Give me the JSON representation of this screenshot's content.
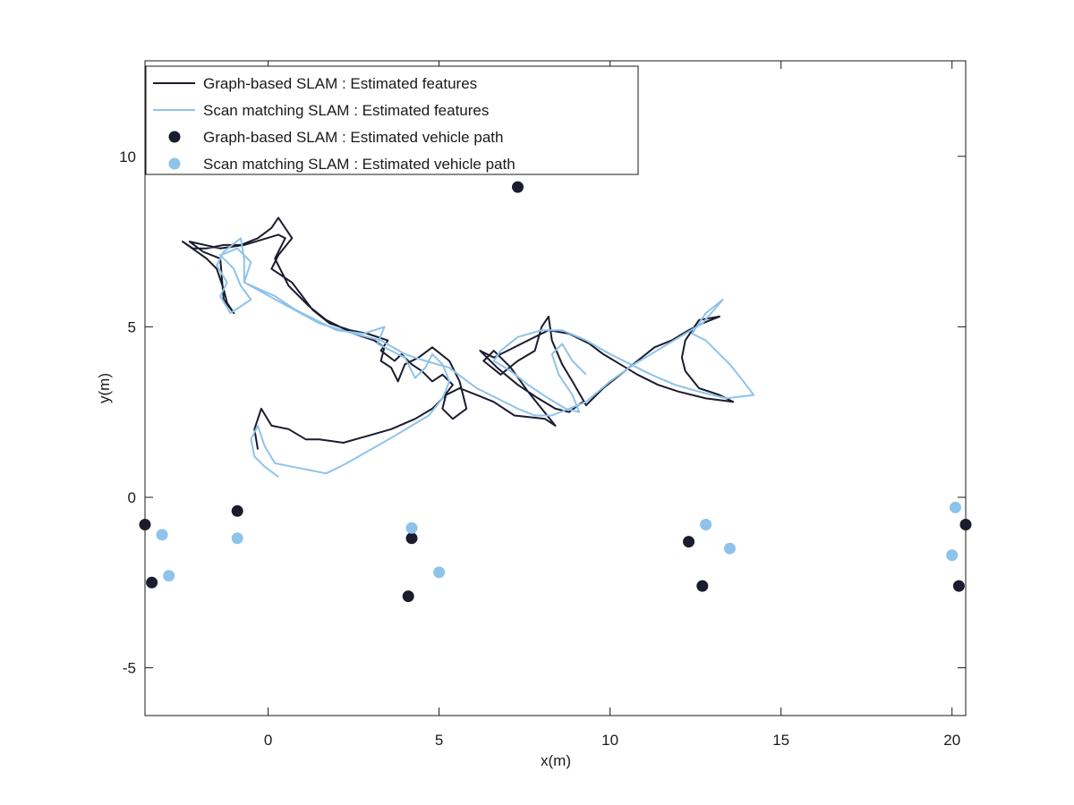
{
  "chart_data": {
    "type": "line",
    "title": "",
    "xlabel": "x(m)",
    "ylabel": "y(m)",
    "xlim": [
      -3.6,
      20.4
    ],
    "ylim": [
      -6.4,
      12.8
    ],
    "xticks": [
      0,
      5,
      10,
      15,
      20
    ],
    "yticks": [
      -5,
      0,
      5,
      10
    ],
    "xtick_labels": [
      "0",
      "5",
      "10",
      "15",
      "20"
    ],
    "ytick_labels": [
      "-5",
      "0",
      "5",
      "10"
    ],
    "grid": false,
    "legend_position": "top-left",
    "colors": {
      "graph": "#1b1c2e",
      "scan": "#8ec3ea"
    },
    "series": [
      {
        "name": "Graph-based SLAM : Estimated features",
        "kind": "line",
        "color": "#1b1c2e",
        "points": [
          [
            -0.3,
            1.4
          ],
          [
            -0.4,
            2.0
          ],
          [
            -0.2,
            2.6
          ],
          [
            0.1,
            2.1
          ],
          [
            0.6,
            2.0
          ],
          [
            1.1,
            1.7
          ],
          [
            1.5,
            1.7
          ],
          [
            2.2,
            1.6
          ],
          [
            2.9,
            1.8
          ],
          [
            3.6,
            2.0
          ],
          [
            4.3,
            2.3
          ],
          [
            4.8,
            2.6
          ],
          [
            5.1,
            2.9
          ],
          [
            5.4,
            3.3
          ],
          [
            5.1,
            3.6
          ],
          [
            4.8,
            3.4
          ],
          [
            4.5,
            3.7
          ],
          [
            4.2,
            3.9
          ],
          [
            3.9,
            4.2
          ],
          [
            3.7,
            4.0
          ],
          [
            3.3,
            4.3
          ],
          [
            3.5,
            4.6
          ],
          [
            2.9,
            4.8
          ],
          [
            2.4,
            4.9
          ],
          [
            1.8,
            5.1
          ],
          [
            1.3,
            5.5
          ],
          [
            0.7,
            6.3
          ],
          [
            0.1,
            6.7
          ],
          [
            0.3,
            7.1
          ],
          [
            0.7,
            7.6
          ],
          [
            0.3,
            8.2
          ],
          [
            0.1,
            7.9
          ],
          [
            -0.3,
            7.6
          ],
          [
            -0.8,
            7.4
          ],
          [
            -1.3,
            7.4
          ],
          [
            -1.8,
            7.3
          ],
          [
            -2.2,
            7.3
          ],
          [
            -2.5,
            7.5
          ],
          [
            -1.8,
            7.0
          ],
          [
            -1.5,
            6.7
          ],
          [
            -1.3,
            6.1
          ],
          [
            -1.2,
            5.7
          ],
          [
            -1.0,
            5.4
          ],
          [
            -1.3,
            5.8
          ],
          [
            -1.4,
            7.0
          ],
          [
            -1.9,
            7.2
          ],
          [
            -2.3,
            7.5
          ],
          [
            -1.4,
            7.3
          ],
          [
            -0.7,
            7.4
          ],
          [
            0.3,
            7.7
          ],
          [
            0.5,
            7.6
          ],
          [
            0.2,
            7.0
          ],
          [
            0.6,
            6.2
          ],
          [
            1.2,
            5.6
          ],
          [
            1.7,
            5.2
          ],
          [
            2.5,
            4.8
          ],
          [
            3.1,
            4.6
          ],
          [
            3.4,
            4.4
          ],
          [
            3.3,
            4.0
          ],
          [
            3.6,
            3.8
          ],
          [
            3.8,
            3.4
          ],
          [
            4.0,
            3.9
          ],
          [
            4.4,
            4.1
          ],
          [
            4.8,
            4.4
          ],
          [
            5.3,
            4.0
          ],
          [
            5.6,
            3.4
          ],
          [
            5.8,
            2.6
          ],
          [
            5.4,
            2.3
          ],
          [
            5.1,
            2.6
          ],
          [
            5.2,
            3.0
          ],
          [
            5.6,
            3.2
          ],
          [
            6.1,
            3.0
          ],
          [
            6.6,
            2.8
          ],
          [
            7.2,
            2.4
          ],
          [
            8.1,
            2.3
          ],
          [
            8.4,
            2.1
          ],
          [
            8.0,
            2.6
          ],
          [
            7.6,
            3.1
          ],
          [
            7.1,
            3.8
          ],
          [
            6.6,
            4.3
          ],
          [
            6.3,
            4.0
          ],
          [
            6.8,
            3.6
          ],
          [
            7.3,
            4.0
          ],
          [
            7.8,
            4.3
          ],
          [
            8.0,
            5.0
          ],
          [
            8.2,
            5.3
          ],
          [
            8.3,
            4.6
          ],
          [
            8.6,
            3.9
          ],
          [
            8.9,
            3.4
          ],
          [
            9.3,
            2.7
          ],
          [
            9.8,
            3.2
          ],
          [
            10.3,
            3.6
          ],
          [
            10.8,
            4.0
          ],
          [
            11.3,
            4.4
          ],
          [
            11.8,
            4.6
          ],
          [
            12.3,
            4.9
          ],
          [
            12.7,
            5.1
          ],
          [
            13.2,
            5.3
          ],
          [
            12.6,
            5.2
          ],
          [
            12.2,
            4.6
          ],
          [
            12.1,
            4.1
          ],
          [
            12.2,
            3.7
          ],
          [
            12.6,
            3.2
          ],
          [
            13.2,
            3.0
          ],
          [
            13.6,
            2.8
          ],
          [
            12.8,
            2.9
          ],
          [
            12.0,
            3.1
          ],
          [
            11.4,
            3.3
          ],
          [
            10.8,
            3.6
          ],
          [
            10.3,
            3.9
          ],
          [
            9.8,
            4.2
          ],
          [
            9.4,
            4.5
          ],
          [
            8.8,
            4.8
          ],
          [
            8.2,
            4.9
          ],
          [
            7.6,
            4.6
          ],
          [
            7.0,
            4.3
          ],
          [
            6.6,
            4.1
          ],
          [
            6.2,
            4.3
          ],
          [
            6.7,
            3.8
          ],
          [
            7.3,
            3.3
          ],
          [
            7.9,
            2.9
          ],
          [
            8.4,
            2.6
          ],
          [
            8.8,
            2.5
          ],
          [
            9.2,
            2.8
          ]
        ]
      },
      {
        "name": "Scan matching SLAM : Estimated features",
        "kind": "line",
        "color": "#8ec3ea",
        "points": [
          [
            0.3,
            0.6
          ],
          [
            -0.1,
            0.9
          ],
          [
            -0.4,
            1.2
          ],
          [
            -0.5,
            1.7
          ],
          [
            -0.3,
            2.1
          ],
          [
            -0.1,
            1.5
          ],
          [
            0.2,
            1.0
          ],
          [
            0.7,
            0.9
          ],
          [
            1.2,
            0.8
          ],
          [
            1.7,
            0.7
          ],
          [
            2.3,
            1.0
          ],
          [
            3.0,
            1.4
          ],
          [
            3.7,
            1.8
          ],
          [
            4.2,
            2.1
          ],
          [
            4.7,
            2.4
          ],
          [
            5.1,
            2.9
          ],
          [
            5.3,
            3.4
          ],
          [
            5.1,
            3.9
          ],
          [
            4.8,
            4.2
          ],
          [
            4.6,
            3.8
          ],
          [
            4.3,
            3.5
          ],
          [
            4.0,
            4.1
          ],
          [
            3.6,
            4.3
          ],
          [
            3.2,
            4.5
          ],
          [
            3.4,
            5.0
          ],
          [
            2.8,
            4.8
          ],
          [
            2.0,
            4.9
          ],
          [
            1.4,
            5.2
          ],
          [
            0.8,
            5.5
          ],
          [
            0.2,
            5.9
          ],
          [
            -0.7,
            6.3
          ],
          [
            -0.7,
            7.0
          ],
          [
            -0.8,
            7.6
          ],
          [
            -1.3,
            7.2
          ],
          [
            -1.5,
            6.8
          ],
          [
            -1.2,
            6.3
          ],
          [
            -1.4,
            5.9
          ],
          [
            -1.1,
            5.4
          ],
          [
            -0.8,
            5.6
          ],
          [
            -0.5,
            5.8
          ],
          [
            -0.8,
            6.2
          ],
          [
            -1.0,
            6.7
          ],
          [
            -1.4,
            7.1
          ],
          [
            -0.9,
            7.3
          ],
          [
            -0.5,
            6.9
          ],
          [
            -0.7,
            6.3
          ],
          [
            0.4,
            5.7
          ],
          [
            1.5,
            5.1
          ],
          [
            2.5,
            4.8
          ],
          [
            3.3,
            4.6
          ],
          [
            4.0,
            4.2
          ],
          [
            4.6,
            4.0
          ],
          [
            5.3,
            3.8
          ],
          [
            5.7,
            3.5
          ],
          [
            6.1,
            3.2
          ],
          [
            6.7,
            2.9
          ],
          [
            7.3,
            2.6
          ],
          [
            7.8,
            2.4
          ],
          [
            8.3,
            2.4
          ],
          [
            8.8,
            2.6
          ],
          [
            9.3,
            2.8
          ],
          [
            10.0,
            3.4
          ],
          [
            10.7,
            3.9
          ],
          [
            11.2,
            4.2
          ],
          [
            11.7,
            4.5
          ],
          [
            12.2,
            4.8
          ],
          [
            12.7,
            5.1
          ],
          [
            13.3,
            5.8
          ],
          [
            12.8,
            5.4
          ],
          [
            12.4,
            4.8
          ],
          [
            12.8,
            4.6
          ],
          [
            13.1,
            4.3
          ],
          [
            13.5,
            3.9
          ],
          [
            13.9,
            3.4
          ],
          [
            14.2,
            3.0
          ],
          [
            13.4,
            2.9
          ],
          [
            12.6,
            3.1
          ],
          [
            11.9,
            3.3
          ],
          [
            11.2,
            3.6
          ],
          [
            10.6,
            3.9
          ],
          [
            10.0,
            4.2
          ],
          [
            9.3,
            4.6
          ],
          [
            8.6,
            4.9
          ],
          [
            8.0,
            4.9
          ],
          [
            7.3,
            4.7
          ],
          [
            6.8,
            4.3
          ],
          [
            6.6,
            4.0
          ],
          [
            7.1,
            3.7
          ],
          [
            7.6,
            3.3
          ],
          [
            8.2,
            2.9
          ],
          [
            8.7,
            2.6
          ],
          [
            9.1,
            2.5
          ],
          [
            8.9,
            3.0
          ],
          [
            8.5,
            3.6
          ],
          [
            8.3,
            4.2
          ],
          [
            8.6,
            4.5
          ],
          [
            8.9,
            4.0
          ],
          [
            9.3,
            3.6
          ]
        ]
      },
      {
        "name": "Graph-based SLAM : Estimated vehicle path",
        "kind": "scatter",
        "color": "#1b1c2e",
        "points": [
          [
            7.3,
            9.1
          ],
          [
            -3.6,
            -0.8
          ],
          [
            -3.4,
            -2.5
          ],
          [
            -0.9,
            -0.4
          ],
          [
            4.2,
            -1.2
          ],
          [
            4.1,
            -2.9
          ],
          [
            12.3,
            -1.3
          ],
          [
            12.7,
            -2.6
          ],
          [
            20.4,
            -0.8
          ],
          [
            20.2,
            -2.6
          ]
        ]
      },
      {
        "name": "Scan matching SLAM : Estimated vehicle path",
        "kind": "scatter",
        "color": "#8ec3ea",
        "points": [
          [
            -3.1,
            -1.1
          ],
          [
            -2.9,
            -2.3
          ],
          [
            -0.9,
            -1.2
          ],
          [
            4.2,
            -0.9
          ],
          [
            5.0,
            -2.2
          ],
          [
            12.8,
            -0.8
          ],
          [
            13.5,
            -1.5
          ],
          [
            20.1,
            -0.3
          ],
          [
            20.0,
            -1.7
          ]
        ]
      }
    ]
  }
}
